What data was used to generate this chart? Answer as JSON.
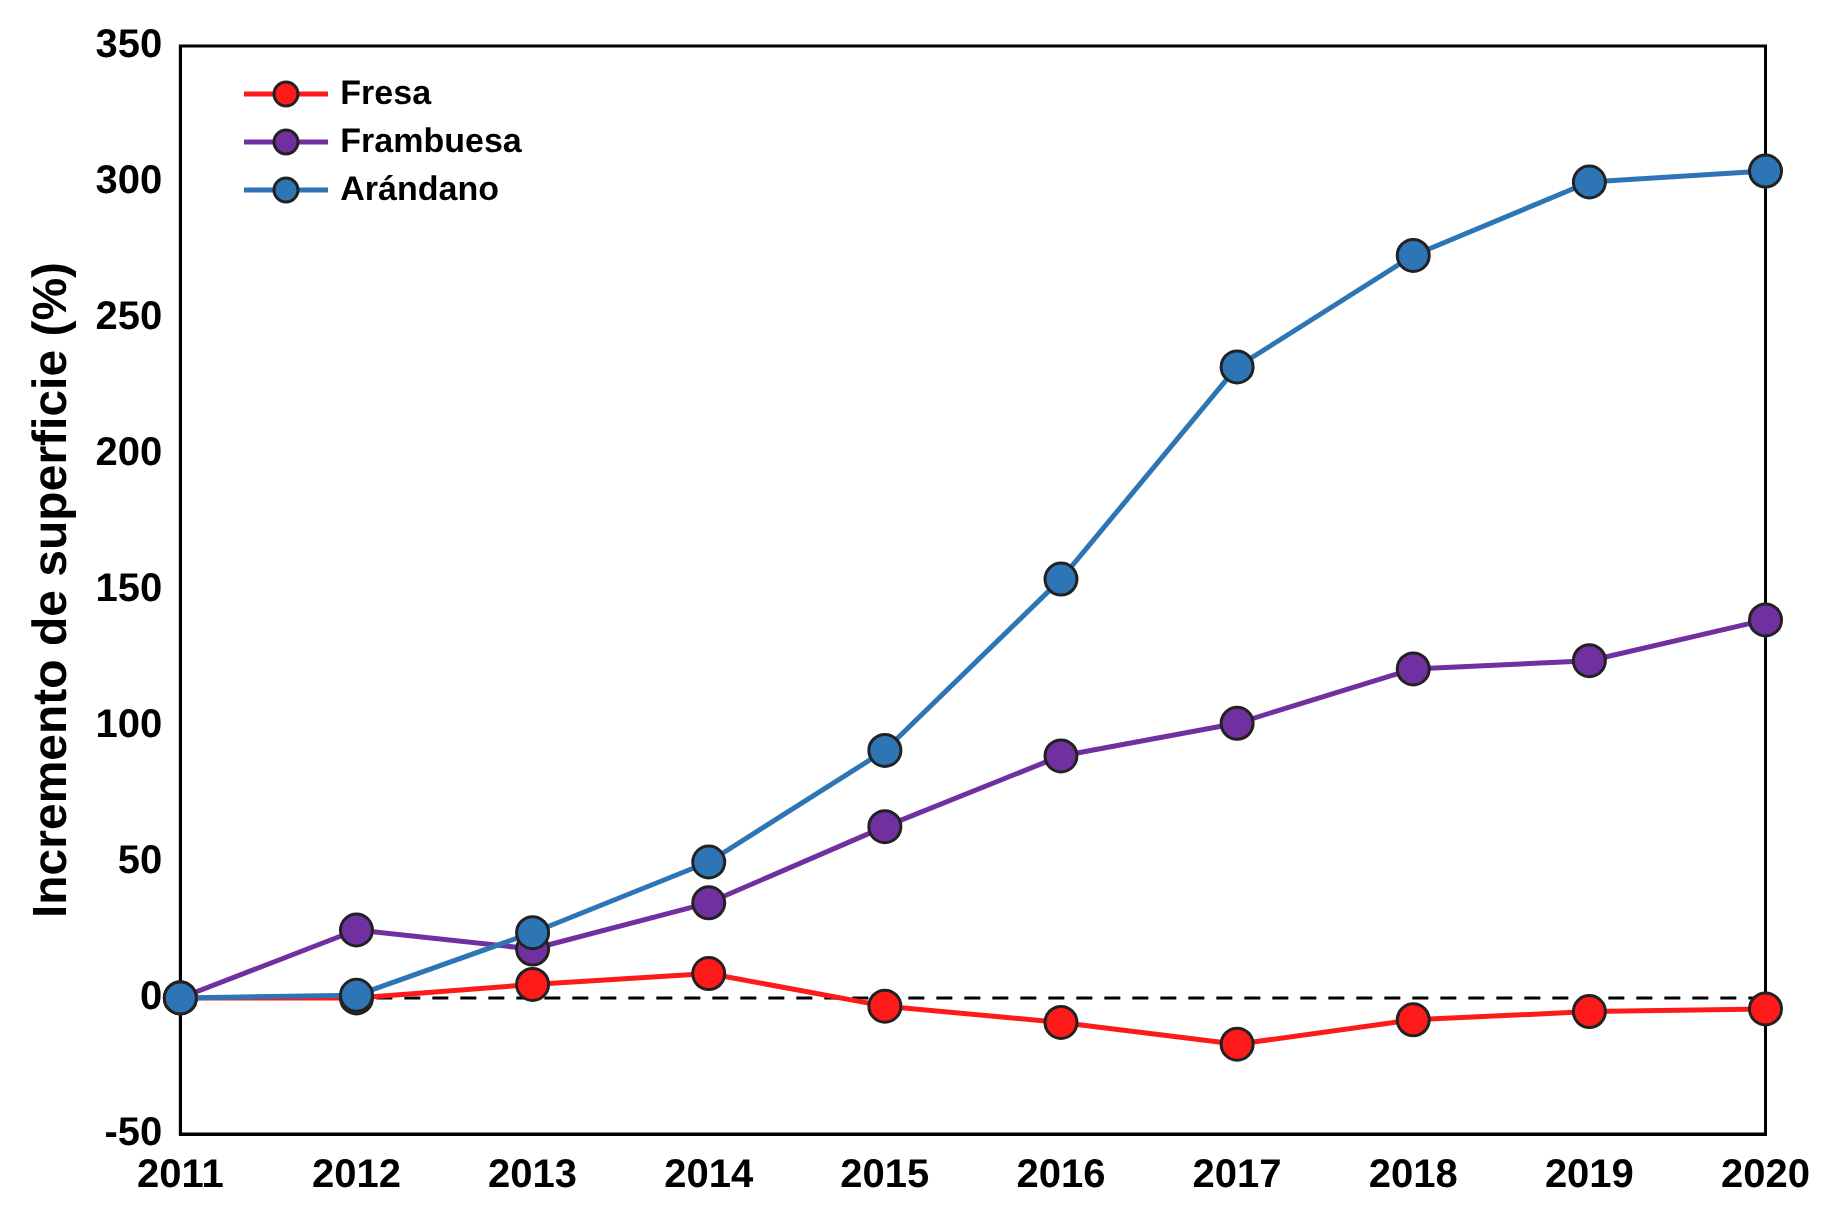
{
  "chart_data": {
    "type": "line",
    "ylabel": "Incremento de superficie (%)",
    "categories": [
      "2011",
      "2012",
      "2013",
      "2014",
      "2015",
      "2016",
      "2017",
      "2018",
      "2019",
      "2020"
    ],
    "series": [
      {
        "name": "Fresa",
        "color": "#ff1a1a",
        "values": [
          0,
          0,
          5,
          9,
          -3,
          -9,
          -17,
          -8,
          -5,
          -4
        ]
      },
      {
        "name": "Frambuesa",
        "color": "#7030a0",
        "values": [
          0,
          25,
          18,
          35,
          63,
          89,
          101,
          121,
          124,
          139
        ]
      },
      {
        "name": "Arándano",
        "color": "#2e75b6",
        "values": [
          0,
          1,
          24,
          50,
          91,
          154,
          232,
          273,
          300,
          304
        ]
      }
    ],
    "ylim": [
      -50,
      350
    ],
    "yticks": [
      -50,
      0,
      50,
      100,
      150,
      200,
      250,
      300,
      350
    ],
    "ref_lines": [
      {
        "axis": "y",
        "value": 0,
        "color": "#000000",
        "line_style": "dashed"
      }
    ],
    "grid": false,
    "legend": "top left",
    "marker": "circle",
    "line_style": "solid"
  }
}
